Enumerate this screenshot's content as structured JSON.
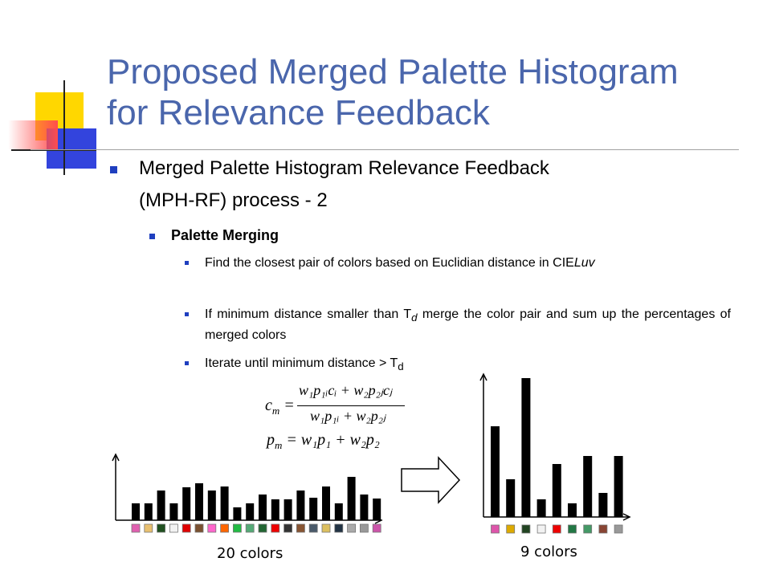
{
  "slide": {
    "title_lines": [
      "Proposed Merged Palette Histogram",
      "for Relevance Feedback"
    ],
    "colors": {
      "title": "#4a66ac",
      "bullet": "#1f3fbf",
      "deco_yellow": "#ffd700",
      "deco_blue": "#3344dd",
      "deco_red": "#ff5555"
    }
  },
  "bullets": {
    "level1": [
      "Merged Palette Histogram Relevance Feedback",
      "(MPH-RF) process - 2"
    ],
    "level2": "Palette Merging",
    "level3": [
      {
        "text": "Find the closest pair of colors based on  Euclidian distance in CIE",
        "italic": "Luv"
      },
      {
        "pre": "If minimum distance smaller than T",
        "sub": "d",
        "post": " merge the color pair and sum up the percentages of merged colors"
      },
      {
        "pre": "Iterate until minimum distance > T",
        "sub": "d"
      }
    ]
  },
  "formulas": {
    "cm": {
      "lhs": "c",
      "lhs_sub": "m",
      "numerator": "w₁p₁ᵢcᵢ + w₂p₂ⱼcⱼ",
      "denominator": "w₁p₁ᵢ + w₂p₂ⱼ"
    },
    "pm": {
      "lhs": "p",
      "lhs_sub": "m",
      "rhs": "w₁p₁ + w₂p₂"
    }
  },
  "chart_data": [
    {
      "type": "bar",
      "caption": "20 colors",
      "values": [
        21,
        21,
        37,
        21,
        41,
        46,
        37,
        42,
        16,
        21,
        32,
        26,
        26,
        37,
        28,
        42,
        21,
        54,
        32,
        27
      ],
      "swatch_colors": [
        "#e060b0",
        "#e8c070",
        "#205020",
        "#f2f2f2",
        "#e00000",
        "#7a5030",
        "#ff66cc",
        "#ff6600",
        "#22bb44",
        "#55aa77",
        "#226633",
        "#ee0000",
        "#333333",
        "#885533",
        "#4a5a6a",
        "#ddc060",
        "#223344",
        "#aaaaaa",
        "#999999",
        "#cc55aa"
      ]
    },
    {
      "type": "bar",
      "caption": "9 colors",
      "values": [
        113,
        47,
        173,
        22,
        66,
        17,
        76,
        30,
        76
      ],
      "swatch_colors": [
        "#dd55aa",
        "#ddaa00",
        "#224422",
        "#f2f2f2",
        "#ee0000",
        "#227744",
        "#449966",
        "#884433",
        "#999999"
      ]
    }
  ]
}
